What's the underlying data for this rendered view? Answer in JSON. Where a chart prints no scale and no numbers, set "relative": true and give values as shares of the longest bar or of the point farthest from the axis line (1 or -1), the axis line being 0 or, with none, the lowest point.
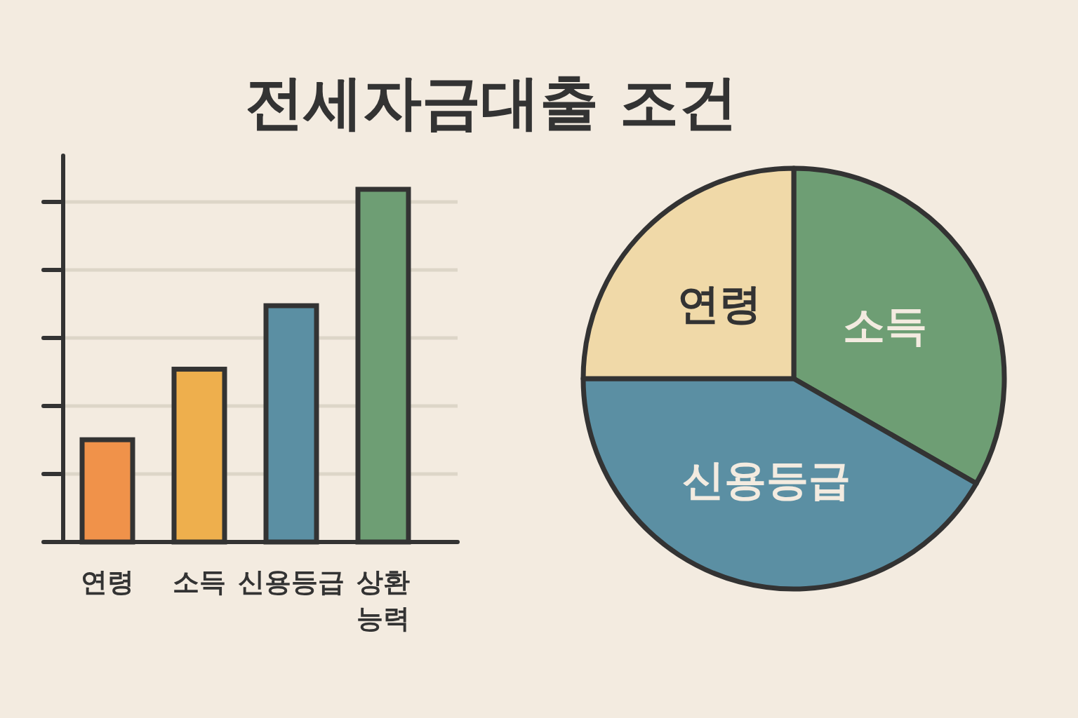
{
  "chart_data": [
    {
      "type": "bar",
      "title": "전세자금대출 조건",
      "relative": true,
      "grid": "y",
      "categories": [
        "연령",
        "소득",
        "신용등급",
        "상환능력"
      ],
      "values": [
        0.29,
        0.49,
        0.67,
        1
      ],
      "colors": [
        "#f0924a",
        "#eeaf4d",
        "#5b8fa3",
        "#6e9e74"
      ]
    },
    {
      "type": "pie",
      "categories": [
        "소득",
        "신용등급",
        "연령"
      ],
      "values": [
        33.3,
        41.7,
        25
      ],
      "colors": [
        "#6e9e74",
        "#5b8fa3",
        "#f0d9a8"
      ]
    }
  ]
}
